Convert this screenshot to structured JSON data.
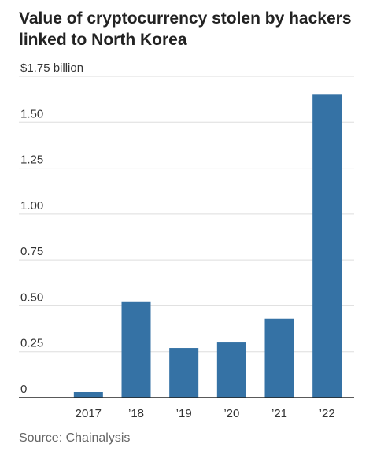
{
  "title": "Value of cryptocurrency stolen by hackers linked to North Korea",
  "source": "Source: Chainalysis",
  "colors": {
    "bar": "#3572a5",
    "grid": "#dddddd",
    "axis": "#222222"
  },
  "chart_data": {
    "type": "bar",
    "title": "Value of cryptocurrency stolen by hackers linked to North Korea",
    "categories": [
      "2017",
      "’18",
      "’19",
      "’20",
      "’21",
      "’22"
    ],
    "values": [
      0.03,
      0.52,
      0.27,
      0.3,
      0.43,
      1.65
    ],
    "y_ticks": [
      {
        "value": 0,
        "label": "0"
      },
      {
        "value": 0.25,
        "label": "0.25"
      },
      {
        "value": 0.5,
        "label": "0.50"
      },
      {
        "value": 0.75,
        "label": "0.75"
      },
      {
        "value": 1.0,
        "label": "1.00"
      },
      {
        "value": 1.25,
        "label": "1.25"
      },
      {
        "value": 1.5,
        "label": "1.50"
      },
      {
        "value": 1.75,
        "label": "$1.75 billion"
      }
    ],
    "ylim": [
      0,
      1.75
    ],
    "grid": true,
    "xlabel": "",
    "ylabel": ""
  }
}
